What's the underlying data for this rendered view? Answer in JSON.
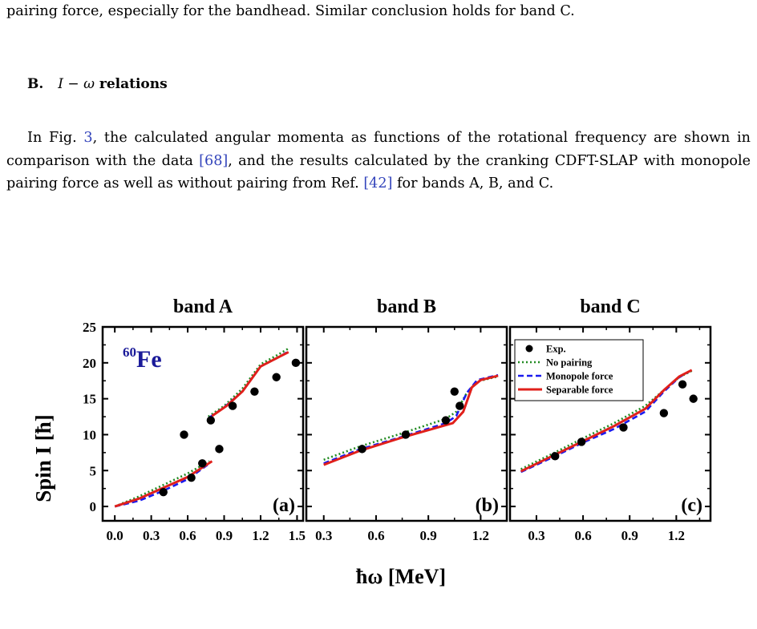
{
  "text": {
    "para_top": "pairing force, especially for the bandhead. Similar conclusion holds for band C.",
    "section_label": "B.",
    "section_title_math": "I − ω",
    "section_title_rest": "relations",
    "para_intro_pre": "In Fig. ",
    "fig_ref": "3",
    "para_intro_mid": ", the calculated angular momenta as functions of the rotational frequency are shown in comparison with the data ",
    "data_ref": "[68]",
    "para_intro_post": ", and the results calculated by the cranking CDFT-SLAP with monopole pairing force as well as without pairing from Ref. ",
    "ref_42": "[42]",
    "para_intro_end": " for bands A, B, and C."
  },
  "figure": {
    "ylabel": "Spin I [ħ]",
    "xlabel": "ħω [MeV]",
    "nucleus_mass": "60",
    "nucleus_symbol": "Fe",
    "colors": {
      "exp": "#000000",
      "no_pairing": "#228B22",
      "monopole": "#1a1aee",
      "separable": "#e0201b",
      "nucleus": "#1a1a99"
    },
    "legend": {
      "exp": "Exp.",
      "no_pairing": "No pairing",
      "monopole": "Monopole force",
      "separable": "Separable force"
    }
  },
  "chart_data": [
    {
      "type": "line",
      "title": "band A",
      "panel_label": "(a)",
      "xlim": [
        -0.1,
        1.55
      ],
      "ylim": [
        -2,
        25
      ],
      "xticks": [
        "0.0",
        "0.3",
        "0.6",
        "0.9",
        "1.2",
        "1.5"
      ],
      "yticks": [
        "0",
        "5",
        "10",
        "15",
        "20",
        "25"
      ],
      "exp": [
        [
          0.4,
          2
        ],
        [
          0.57,
          10
        ],
        [
          0.63,
          4
        ],
        [
          0.72,
          6
        ],
        [
          0.79,
          12
        ],
        [
          0.86,
          8
        ],
        [
          0.97,
          14
        ],
        [
          1.15,
          16
        ],
        [
          1.33,
          18
        ],
        [
          1.49,
          20
        ]
      ],
      "series": [
        {
          "key": "no_pairing",
          "segments": [
            [
              [
                0.0,
                0.0
              ],
              [
                0.2,
                1.4
              ],
              [
                0.4,
                3.0
              ],
              [
                0.6,
                4.6
              ],
              [
                0.78,
                6.3
              ]
            ],
            [
              [
                0.77,
                12.5
              ],
              [
                0.9,
                14.0
              ],
              [
                1.05,
                16.4
              ],
              [
                1.2,
                19.8
              ],
              [
                1.35,
                21.2
              ],
              [
                1.43,
                22.0
              ]
            ]
          ]
        },
        {
          "key": "monopole",
          "segments": [
            [
              [
                0.0,
                0.0
              ],
              [
                0.2,
                0.8
              ],
              [
                0.4,
                2.2
              ],
              [
                0.6,
                3.8
              ],
              [
                0.78,
                6.0
              ]
            ],
            [
              [
                0.78,
                12.4
              ],
              [
                0.9,
                13.8
              ],
              [
                1.05,
                16.0
              ],
              [
                1.2,
                19.5
              ],
              [
                1.35,
                20.8
              ],
              [
                1.43,
                21.6
              ]
            ]
          ]
        },
        {
          "key": "separable",
          "segments": [
            [
              [
                0.0,
                0.0
              ],
              [
                0.2,
                1.1
              ],
              [
                0.4,
                2.6
              ],
              [
                0.6,
                4.1
              ],
              [
                0.8,
                6.3
              ]
            ],
            [
              [
                0.8,
                12.6
              ],
              [
                0.92,
                14.0
              ],
              [
                1.05,
                16.0
              ],
              [
                1.2,
                19.5
              ],
              [
                1.35,
                20.8
              ],
              [
                1.43,
                21.5
              ]
            ]
          ]
        }
      ]
    },
    {
      "type": "line",
      "title": "band B",
      "panel_label": "(b)",
      "xlim": [
        0.2,
        1.35
      ],
      "ylim": [
        -2,
        25
      ],
      "xticks": [
        "0.3",
        "0.6",
        "0.9",
        "1.2"
      ],
      "yticks": [],
      "exp": [
        [
          0.52,
          8
        ],
        [
          0.77,
          10
        ],
        [
          1.0,
          12
        ],
        [
          1.05,
          16
        ],
        [
          1.08,
          14
        ]
      ],
      "series": [
        {
          "key": "no_pairing",
          "segments": [
            [
              [
                0.3,
                6.5
              ],
              [
                0.5,
                8.3
              ],
              [
                0.75,
                10.2
              ],
              [
                1.0,
                12.2
              ],
              [
                1.06,
                13.2
              ],
              [
                1.12,
                15.8
              ],
              [
                1.18,
                17.4
              ],
              [
                1.3,
                18.1
              ]
            ]
          ]
        },
        {
          "key": "monopole",
          "segments": [
            [
              [
                0.3,
                6.0
              ],
              [
                0.5,
                7.9
              ],
              [
                0.75,
                9.7
              ],
              [
                1.0,
                11.6
              ],
              [
                1.06,
                12.6
              ],
              [
                1.12,
                15.8
              ],
              [
                1.18,
                17.6
              ],
              [
                1.3,
                18.3
              ]
            ]
          ]
        },
        {
          "key": "separable",
          "segments": [
            [
              [
                0.3,
                5.8
              ],
              [
                0.5,
                7.7
              ],
              [
                0.75,
                9.6
              ],
              [
                1.04,
                11.6
              ],
              [
                1.1,
                13.2
              ],
              [
                1.15,
                16.6
              ],
              [
                1.2,
                17.6
              ],
              [
                1.3,
                18.2
              ]
            ]
          ]
        }
      ]
    },
    {
      "type": "line",
      "title": "band C",
      "panel_label": "(c)",
      "xlim": [
        0.13,
        1.42
      ],
      "ylim": [
        -2,
        25
      ],
      "xticks": [
        "0.3",
        "0.6",
        "0.9",
        "1.2"
      ],
      "yticks": [],
      "exp": [
        [
          0.42,
          7
        ],
        [
          0.59,
          9
        ],
        [
          0.86,
          11
        ],
        [
          1.12,
          13
        ],
        [
          1.24,
          17
        ],
        [
          1.31,
          15
        ]
      ],
      "series": [
        {
          "key": "no_pairing",
          "segments": [
            [
              [
                0.2,
                5.2
              ],
              [
                0.4,
                7.3
              ],
              [
                0.6,
                9.5
              ],
              [
                0.8,
                11.6
              ],
              [
                1.0,
                14.0
              ],
              [
                1.12,
                16.2
              ],
              [
                1.22,
                18.0
              ],
              [
                1.3,
                18.9
              ]
            ]
          ]
        },
        {
          "key": "monopole",
          "segments": [
            [
              [
                0.2,
                4.8
              ],
              [
                0.4,
                6.8
              ],
              [
                0.6,
                8.9
              ],
              [
                0.8,
                10.8
              ],
              [
                1.0,
                13.2
              ],
              [
                1.12,
                16.0
              ],
              [
                1.22,
                18.0
              ],
              [
                1.3,
                19.0
              ]
            ]
          ]
        },
        {
          "key": "separable",
          "segments": [
            [
              [
                0.2,
                4.9
              ],
              [
                0.4,
                7.0
              ],
              [
                0.6,
                9.1
              ],
              [
                0.8,
                11.2
              ],
              [
                1.0,
                13.6
              ],
              [
                1.12,
                16.2
              ],
              [
                1.22,
                18.1
              ],
              [
                1.3,
                19.0
              ]
            ]
          ]
        }
      ]
    }
  ]
}
